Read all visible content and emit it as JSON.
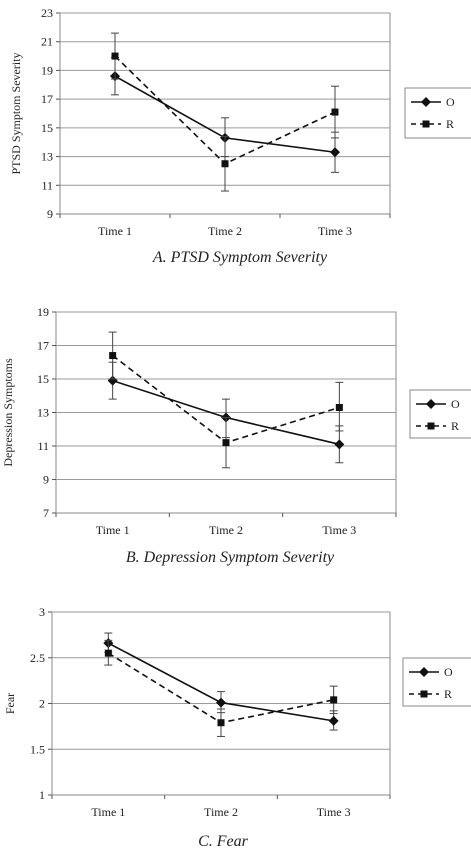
{
  "chart_data": [
    {
      "type": "line",
      "title": "A. PTSD Symptom Severity",
      "xlabel": "",
      "ylabel": "PTSD Symptom Severity",
      "categories": [
        "Time 1",
        "Time 2",
        "Time 3"
      ],
      "ylim": [
        9,
        23
      ],
      "yticks": [
        9,
        11,
        13,
        15,
        17,
        19,
        21,
        23
      ],
      "grid": true,
      "legend": "right",
      "series": [
        {
          "name": "O",
          "marker": "diamond",
          "dash": "solid",
          "values": [
            18.6,
            14.3,
            13.3
          ],
          "err_low": [
            17.3,
            13.0,
            11.9
          ],
          "err_high": [
            19.9,
            15.7,
            14.7
          ]
        },
        {
          "name": "R",
          "marker": "square",
          "dash": "dashed",
          "values": [
            20.0,
            12.5,
            16.1
          ],
          "err_low": [
            18.4,
            10.6,
            14.3
          ],
          "err_high": [
            21.6,
            14.4,
            17.9
          ]
        }
      ]
    },
    {
      "type": "line",
      "title": "B. Depression Symptom Severity",
      "xlabel": "",
      "ylabel": "Depression Symptoms",
      "categories": [
        "Time 1",
        "Time 2",
        "Time 3"
      ],
      "ylim": [
        7,
        19
      ],
      "yticks": [
        7,
        9,
        11,
        13,
        15,
        17,
        19
      ],
      "grid": true,
      "legend": "right",
      "series": [
        {
          "name": "O",
          "marker": "diamond",
          "dash": "solid",
          "values": [
            14.9,
            12.7,
            11.1
          ],
          "err_low": [
            13.8,
            11.5,
            10.0
          ],
          "err_high": [
            16.0,
            13.8,
            12.2
          ]
        },
        {
          "name": "R",
          "marker": "square",
          "dash": "dashed",
          "values": [
            16.4,
            11.2,
            13.3
          ],
          "err_low": [
            15.0,
            9.7,
            11.9
          ],
          "err_high": [
            17.8,
            12.7,
            14.8
          ]
        }
      ]
    },
    {
      "type": "line",
      "title": "C. Fear",
      "xlabel": "",
      "ylabel": "Fear",
      "categories": [
        "Time 1",
        "Time 2",
        "Time 3"
      ],
      "ylim": [
        1,
        3
      ],
      "yticks": [
        1,
        1.5,
        2,
        2.5,
        3
      ],
      "ytick_labels": [
        "1",
        "1.5",
        "2",
        "2.5",
        "3"
      ],
      "grid": true,
      "legend": "right",
      "series": [
        {
          "name": "O",
          "marker": "diamond",
          "dash": "solid",
          "values": [
            2.66,
            2.01,
            1.81
          ],
          "err_low": [
            2.56,
            1.9,
            1.71
          ],
          "err_high": [
            2.77,
            2.13,
            1.92
          ]
        },
        {
          "name": "R",
          "marker": "square",
          "dash": "dashed",
          "values": [
            2.55,
            1.79,
            2.04
          ],
          "err_low": [
            2.42,
            1.64,
            1.89
          ],
          "err_high": [
            2.69,
            1.94,
            2.19
          ]
        }
      ]
    }
  ]
}
